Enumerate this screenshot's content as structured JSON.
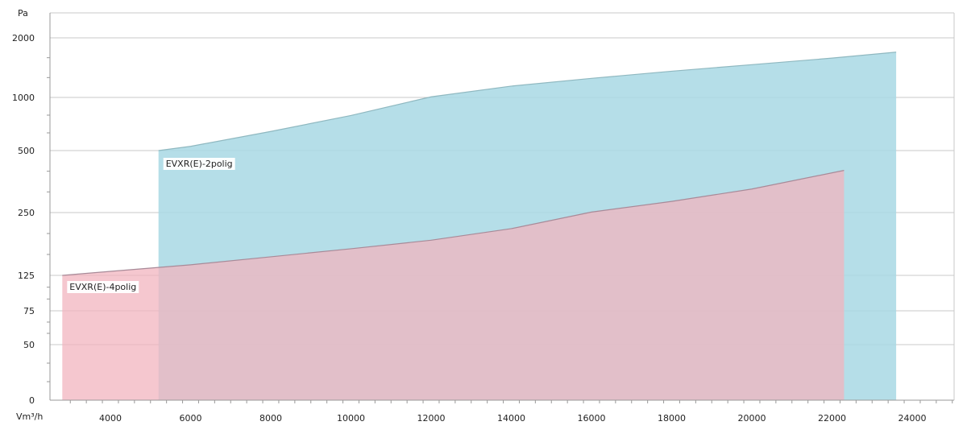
{
  "chart_data": {
    "type": "area",
    "ylabel": "Pa",
    "xlabel": "Vm³/h",
    "x_ticks": [
      4000,
      6000,
      8000,
      10000,
      12000,
      14000,
      16000,
      18000,
      20000,
      22000,
      24000
    ],
    "y_ticks": [
      0,
      50,
      75,
      125,
      250,
      500,
      1000,
      2000
    ],
    "xlim": [
      2000,
      25000
    ],
    "y_scale": "nonlinear (tick-segmented)",
    "grid": "horizontal",
    "series": [
      {
        "name": "EVXR(E)-2polig",
        "color": "#a8d8e4",
        "line_color": "#8fb8c0",
        "x": [
          5200,
          6000,
          8000,
          10000,
          12000,
          14000,
          16000,
          18000,
          20000,
          22000,
          23600
        ],
        "y": [
          500,
          540,
          680,
          830,
          1010,
          1190,
          1320,
          1440,
          1550,
          1660,
          1760
        ]
      },
      {
        "name": "EVXR(E)-4polig",
        "color": "#f2b4bf",
        "line_color": "#a88a98",
        "x": [
          2800,
          4000,
          6000,
          8000,
          10000,
          12000,
          14000,
          16000,
          18000,
          20000,
          22300
        ],
        "y": [
          125,
          133,
          146,
          162,
          178,
          195,
          218,
          252,
          295,
          345,
          420
        ]
      }
    ]
  }
}
